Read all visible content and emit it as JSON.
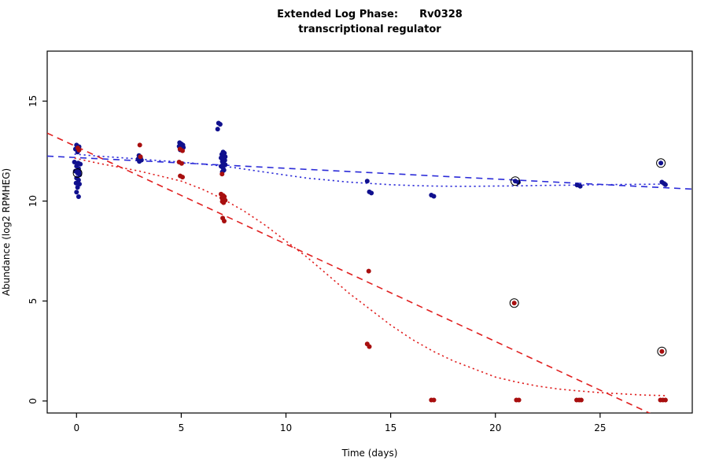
{
  "title": {
    "line1": "Extended Log Phase:      Rv0328",
    "line2": "transcriptional regulator"
  },
  "chart_data": {
    "type": "scatter",
    "title": "Extended Log Phase: Rv0328 transcriptional regulator",
    "xlabel": "Time  (days)",
    "ylabel": "Abundance  (log2 RPMHEG)",
    "xlim": [
      -1.4,
      29.4
    ],
    "ylim": [
      -0.6,
      17.5
    ],
    "xticks": [
      0,
      5,
      10,
      15,
      20,
      25
    ],
    "yticks": [
      0,
      5,
      10,
      15
    ],
    "grid": false,
    "legend": "none",
    "colors": {
      "blue_points": "#10108e",
      "red_points": "#a80f0f",
      "blue_line": "#2b2bd8",
      "red_line": "#e02020",
      "axis": "#000000"
    },
    "series": [
      {
        "name": "blue-condition",
        "color": "#10108e",
        "points": [
          [
            0.0,
            12.8
          ],
          [
            0.12,
            12.72
          ],
          [
            -0.05,
            12.6
          ],
          [
            0.05,
            12.45
          ],
          [
            -0.1,
            11.95
          ],
          [
            0.08,
            11.9
          ],
          [
            0.18,
            11.85
          ],
          [
            0.0,
            11.75
          ],
          [
            0.1,
            11.62
          ],
          [
            -0.06,
            11.5
          ],
          [
            0.12,
            11.45
          ],
          [
            0.15,
            11.32
          ],
          [
            0.0,
            11.15
          ],
          [
            0.1,
            11.05
          ],
          [
            -0.02,
            10.9
          ],
          [
            0.14,
            10.85
          ],
          [
            0.05,
            10.68
          ],
          [
            0.0,
            10.45
          ],
          [
            0.1,
            10.22
          ],
          [
            2.98,
            12.28
          ],
          [
            3.06,
            12.18
          ],
          [
            2.94,
            12.1
          ],
          [
            3.1,
            12.05
          ],
          [
            3.0,
            11.98
          ],
          [
            4.92,
            12.92
          ],
          [
            5.0,
            12.86
          ],
          [
            5.08,
            12.8
          ],
          [
            4.9,
            12.74
          ],
          [
            5.1,
            12.68
          ],
          [
            5.0,
            12.62
          ],
          [
            4.95,
            12.56
          ],
          [
            6.78,
            13.9
          ],
          [
            6.86,
            13.84
          ],
          [
            6.74,
            13.6
          ],
          [
            7.0,
            12.45
          ],
          [
            7.06,
            12.4
          ],
          [
            6.94,
            12.34
          ],
          [
            7.0,
            12.28
          ],
          [
            7.1,
            12.22
          ],
          [
            6.9,
            12.16
          ],
          [
            7.02,
            12.1
          ],
          [
            7.08,
            12.04
          ],
          [
            6.96,
            11.98
          ],
          [
            7.0,
            11.9
          ],
          [
            7.1,
            11.82
          ],
          [
            6.9,
            11.74
          ],
          [
            7.0,
            11.64
          ],
          [
            7.04,
            11.55
          ],
          [
            6.96,
            11.46
          ],
          [
            13.88,
            11.0
          ],
          [
            13.98,
            10.46
          ],
          [
            14.08,
            10.4
          ],
          [
            16.94,
            10.3
          ],
          [
            17.06,
            10.24
          ],
          [
            21.1,
            10.94
          ],
          [
            23.9,
            10.8
          ],
          [
            24.05,
            10.74
          ],
          [
            27.95,
            10.95
          ],
          [
            28.05,
            10.88
          ],
          [
            28.12,
            10.82
          ]
        ],
        "outlined_points": [
          [
            0.05,
            11.4
          ],
          [
            20.95,
            11.0
          ],
          [
            27.9,
            11.9
          ]
        ]
      },
      {
        "name": "red-condition",
        "color": "#a80f0f",
        "points": [
          [
            0.06,
            12.66
          ],
          [
            0.12,
            12.55
          ],
          [
            3.02,
            12.8
          ],
          [
            3.05,
            12.22
          ],
          [
            4.94,
            12.6
          ],
          [
            5.06,
            12.52
          ],
          [
            4.9,
            11.95
          ],
          [
            5.02,
            11.88
          ],
          [
            4.95,
            11.26
          ],
          [
            5.06,
            11.2
          ],
          [
            6.95,
            11.35
          ],
          [
            6.9,
            10.35
          ],
          [
            7.0,
            10.28
          ],
          [
            7.06,
            10.22
          ],
          [
            6.94,
            10.16
          ],
          [
            7.0,
            10.1
          ],
          [
            7.1,
            10.04
          ],
          [
            6.96,
            9.98
          ],
          [
            7.02,
            9.92
          ],
          [
            6.98,
            9.15
          ],
          [
            7.05,
            9.0
          ],
          [
            13.95,
            6.5
          ],
          [
            13.88,
            2.85
          ],
          [
            13.98,
            2.72
          ],
          [
            16.94,
            0.05
          ],
          [
            17.06,
            0.05
          ],
          [
            21.0,
            0.05
          ],
          [
            21.12,
            0.05
          ],
          [
            23.88,
            0.05
          ],
          [
            24.0,
            0.05
          ],
          [
            24.1,
            0.05
          ],
          [
            27.88,
            0.05
          ],
          [
            28.0,
            0.05
          ],
          [
            28.12,
            0.05
          ]
        ],
        "outlined_points": [
          [
            20.9,
            4.9
          ],
          [
            27.95,
            2.48
          ]
        ]
      }
    ],
    "trend_lines": [
      {
        "name": "blue-linear-fit",
        "style": "dashed",
        "color": "#2b2bd8",
        "points": [
          [
            -1.4,
            12.25
          ],
          [
            29.4,
            10.6
          ]
        ]
      },
      {
        "name": "blue-smooth-fit",
        "style": "dotted",
        "color": "#2b2bd8",
        "points": [
          [
            -0.1,
            12.35
          ],
          [
            1,
            12.25
          ],
          [
            2,
            12.18
          ],
          [
            3,
            12.1
          ],
          [
            4,
            12.02
          ],
          [
            5,
            11.95
          ],
          [
            6,
            11.85
          ],
          [
            7,
            11.75
          ],
          [
            8,
            11.6
          ],
          [
            9,
            11.45
          ],
          [
            10,
            11.3
          ],
          [
            11,
            11.15
          ],
          [
            12,
            11.05
          ],
          [
            13,
            10.95
          ],
          [
            14,
            10.88
          ],
          [
            15,
            10.82
          ],
          [
            16,
            10.78
          ],
          [
            17,
            10.75
          ],
          [
            18,
            10.74
          ],
          [
            19,
            10.74
          ],
          [
            20,
            10.75
          ],
          [
            21,
            10.76
          ],
          [
            22,
            10.78
          ],
          [
            23,
            10.79
          ],
          [
            24,
            10.8
          ],
          [
            25,
            10.82
          ],
          [
            26,
            10.83
          ],
          [
            27,
            10.84
          ],
          [
            28.1,
            10.85
          ]
        ]
      },
      {
        "name": "red-linear-fit",
        "style": "dashed",
        "color": "#e02020",
        "points": [
          [
            -1.4,
            13.4
          ],
          [
            29.4,
            -1.6
          ]
        ]
      },
      {
        "name": "red-smooth-fit",
        "style": "dotted",
        "color": "#e02020",
        "points": [
          [
            -0.1,
            12.15
          ],
          [
            1,
            11.9
          ],
          [
            2,
            11.7
          ],
          [
            3,
            11.5
          ],
          [
            4,
            11.25
          ],
          [
            5,
            11.0
          ],
          [
            6,
            10.6
          ],
          [
            7,
            10.1
          ],
          [
            8,
            9.5
          ],
          [
            9,
            8.8
          ],
          [
            10,
            8.0
          ],
          [
            11,
            7.2
          ],
          [
            12,
            6.3
          ],
          [
            13,
            5.4
          ],
          [
            14,
            4.6
          ],
          [
            15,
            3.8
          ],
          [
            16,
            3.1
          ],
          [
            17,
            2.5
          ],
          [
            18,
            2.0
          ],
          [
            19,
            1.6
          ],
          [
            20,
            1.2
          ],
          [
            21,
            0.95
          ],
          [
            22,
            0.75
          ],
          [
            23,
            0.6
          ],
          [
            24,
            0.5
          ],
          [
            25,
            0.42
          ],
          [
            26,
            0.36
          ],
          [
            27,
            0.3
          ],
          [
            28.1,
            0.27
          ]
        ]
      }
    ]
  }
}
